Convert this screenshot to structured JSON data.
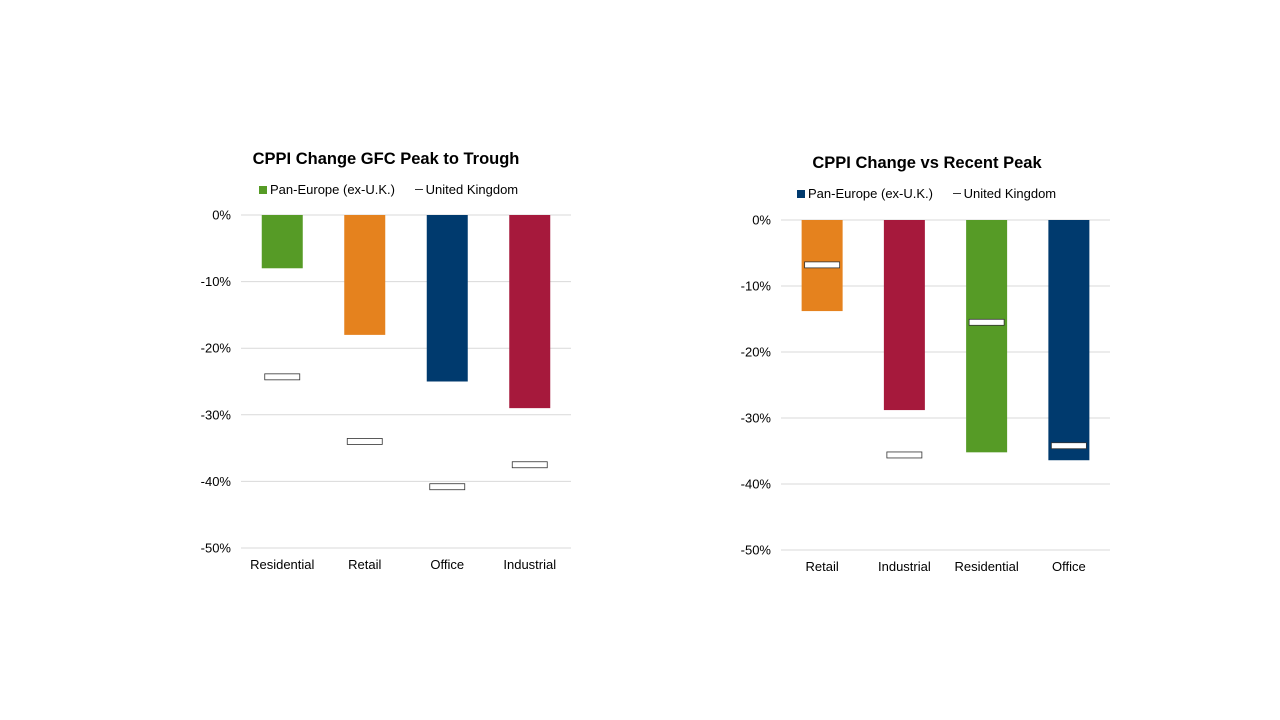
{
  "chart_data": [
    {
      "type": "bar",
      "title": "CPPI Change GFC Peak to Trough",
      "categories": [
        "Residential",
        "Retail",
        "Office",
        "Industrial"
      ],
      "series": [
        {
          "name": "Pan-Europe (ex-U.K.)",
          "values": [
            -8,
            -18,
            -25,
            -29
          ],
          "bar_colors": [
            "#569b26",
            "#e5821e",
            "#003a6e",
            "#a6193c"
          ]
        },
        {
          "name": "United Kingdom",
          "values": [
            -24.3,
            -34,
            -40.8,
            -37.5
          ],
          "marker": "dash"
        }
      ],
      "ylim": [
        -50,
        0
      ],
      "yticks": [
        "0%",
        "-10%",
        "-20%",
        "-30%",
        "-40%",
        "-50%"
      ],
      "grid": true,
      "legend": "top"
    },
    {
      "type": "bar",
      "title": "CPPI Change vs Recent Peak",
      "categories": [
        "Retail",
        "Industrial",
        "Residential",
        "Office"
      ],
      "series": [
        {
          "name": "Pan-Europe (ex-U.K.)",
          "values": [
            -13.8,
            -28.8,
            -35.2,
            -36.4
          ],
          "bar_colors": [
            "#e5821e",
            "#a6193c",
            "#569b26",
            "#003a6e"
          ]
        },
        {
          "name": "United Kingdom",
          "values": [
            -6.8,
            -35.6,
            -15.5,
            -34.2
          ],
          "marker": "dash"
        }
      ],
      "ylim": [
        -50,
        0
      ],
      "yticks": [
        "0%",
        "-10%",
        "-20%",
        "-30%",
        "-40%",
        "-50%"
      ],
      "grid": true,
      "legend": "top"
    }
  ],
  "colors": {
    "pan_europe_left_swatch": "#569b26",
    "pan_europe_right_swatch": "#003a6e",
    "uk_marker": "#333333",
    "grid": "#d9d9d9"
  }
}
